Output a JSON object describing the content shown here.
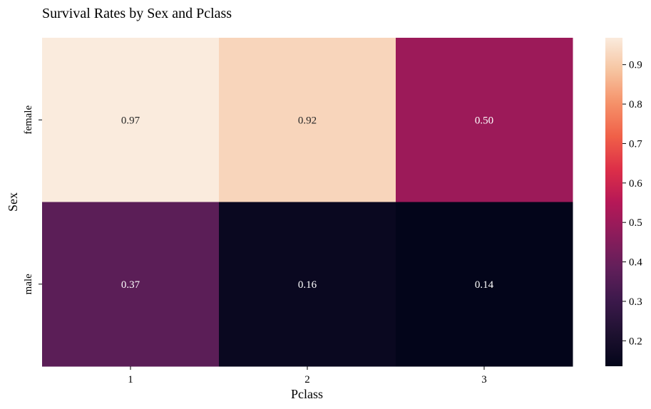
{
  "chart_data": {
    "type": "heatmap",
    "title": "Survival Rates by Sex and Pclass",
    "xlabel": "Pclass",
    "ylabel": "Sex",
    "x_categories": [
      "1",
      "2",
      "3"
    ],
    "y_categories": [
      "female",
      "male"
    ],
    "values": [
      [
        0.968085,
        0.921053,
        0.5
      ],
      [
        0.368852,
        0.157407,
        0.135447
      ]
    ],
    "annotations": [
      [
        "0.97",
        "0.92",
        "0.50"
      ],
      [
        "0.37",
        "0.16",
        "0.14"
      ]
    ],
    "value_range": [
      0.135447,
      0.968085
    ],
    "colormap": "rocket",
    "colorbar_ticks": [
      "0.2",
      "0.3",
      "0.4",
      "0.5",
      "0.6",
      "0.7",
      "0.8",
      "0.9"
    ],
    "colorbar_tick_values": [
      0.2,
      0.3,
      0.4,
      0.5,
      0.6,
      0.7,
      0.8,
      0.9
    ],
    "legend_position": "right",
    "grid": false
  }
}
